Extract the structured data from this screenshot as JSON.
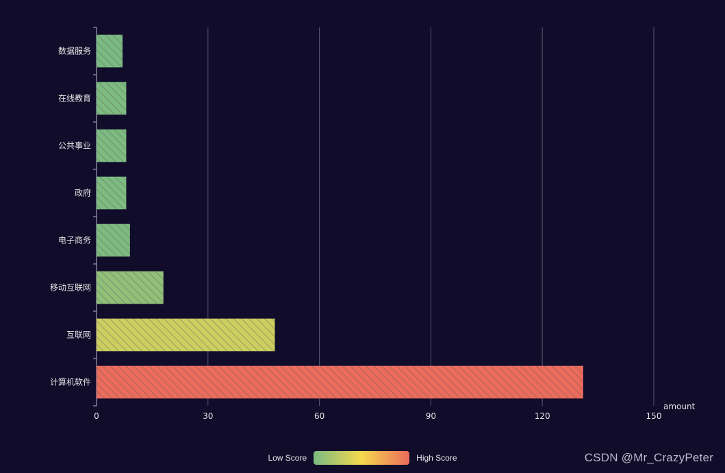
{
  "chart_data": {
    "type": "bar",
    "orientation": "horizontal",
    "categories": [
      "计算机软件",
      "互联网",
      "移动互联网",
      "电子商务",
      "政府",
      "公共事业",
      "在线教育",
      "数据服务"
    ],
    "values": [
      131,
      48,
      18,
      9,
      8,
      8,
      8,
      7
    ],
    "xlabel": "amount",
    "xlim": [
      0,
      150
    ],
    "xticks": [
      0,
      30,
      60,
      90,
      120,
      150
    ],
    "grid": "vertical",
    "pattern": "diagonal-hatch",
    "colors": {
      "low": "#7bba82",
      "mid": "#f5d94e",
      "high": "#eb6b5c",
      "background": "#100c2a",
      "grid": "#5a5870"
    }
  },
  "legend": {
    "low_label": "Low Score",
    "high_label": "High Score"
  },
  "watermark": "CSDN @Mr_CrazyPeter"
}
